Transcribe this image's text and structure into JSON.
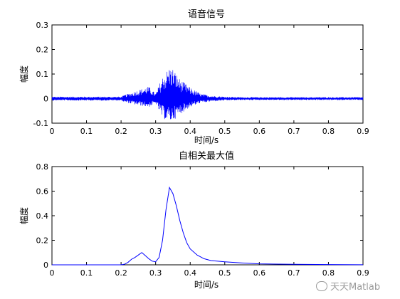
{
  "chart_data": [
    {
      "type": "line",
      "title": "语音信号",
      "xlabel": "时间/s",
      "ylabel": "幅度",
      "xlim": [
        0,
        0.9
      ],
      "ylim": [
        -0.1,
        0.3
      ],
      "xticks": [
        "0",
        "0.1",
        "0.2",
        "0.3",
        "0.4",
        "0.5",
        "0.6",
        "0.7",
        "0.8",
        "0.9"
      ],
      "yticks": [
        "-0.1",
        "0",
        "0.1",
        "0.2",
        "0.3"
      ],
      "series_color": "#0000ff",
      "envelope": {
        "x": [
          0,
          0.2,
          0.21,
          0.24,
          0.28,
          0.3,
          0.32,
          0.34,
          0.35,
          0.37,
          0.4,
          0.43,
          0.46,
          0.5,
          0.55,
          0.6,
          0.9
        ],
        "upper": [
          0.008,
          0.008,
          0.015,
          0.03,
          0.05,
          0.02,
          0.09,
          0.13,
          0.125,
          0.08,
          0.045,
          0.02,
          0.012,
          0.008,
          0.006,
          0.006,
          0.006
        ],
        "lower": [
          -0.008,
          -0.008,
          -0.015,
          -0.025,
          -0.035,
          -0.02,
          -0.08,
          -0.095,
          -0.09,
          -0.065,
          -0.035,
          -0.018,
          -0.012,
          -0.008,
          -0.006,
          -0.006,
          -0.006
        ]
      }
    },
    {
      "type": "line",
      "title": "自相关最大值",
      "xlabel": "时间/s",
      "ylabel": "幅度",
      "xlim": [
        0,
        0.9
      ],
      "ylim": [
        0,
        0.8
      ],
      "xticks": [
        "0",
        "0.1",
        "0.2",
        "0.3",
        "0.4",
        "0.5",
        "0.6",
        "0.7",
        "0.8",
        "0.9"
      ],
      "yticks": [
        "0",
        "0.2",
        "0.4",
        "0.6",
        "0.8"
      ],
      "series_color": "#0000ff",
      "x": [
        0,
        0.2,
        0.21,
        0.22,
        0.23,
        0.24,
        0.25,
        0.26,
        0.27,
        0.28,
        0.29,
        0.3,
        0.31,
        0.32,
        0.33,
        0.34,
        0.35,
        0.36,
        0.37,
        0.38,
        0.39,
        0.4,
        0.42,
        0.44,
        0.46,
        0.5,
        0.55,
        0.6,
        0.7,
        0.8,
        0.9
      ],
      "y": [
        0,
        0,
        0.005,
        0.02,
        0.045,
        0.06,
        0.08,
        0.1,
        0.075,
        0.05,
        0.03,
        0.025,
        0.06,
        0.2,
        0.45,
        0.63,
        0.58,
        0.48,
        0.36,
        0.26,
        0.18,
        0.13,
        0.08,
        0.05,
        0.035,
        0.025,
        0.015,
        0.008,
        0.004,
        0.002,
        0.001
      ]
    }
  ],
  "watermark": "天天Matlab"
}
